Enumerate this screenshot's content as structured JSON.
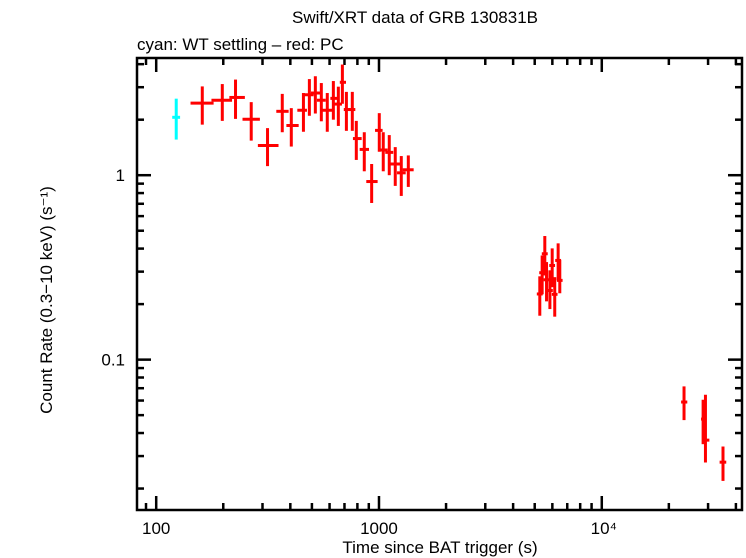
{
  "chart_data": {
    "type": "scatter",
    "title": "Swift/XRT data of GRB 130831B",
    "subtitle": "cyan: WT settling – red: PC",
    "xlabel": "Time since BAT trigger (s)",
    "ylabel": "Count Rate (0.3−10 keV) (s⁻¹)",
    "xscale": "log",
    "yscale": "log",
    "xlim": [
      82,
      42600
    ],
    "ylim": [
      0.0153,
      4.32
    ],
    "x_ticks": [
      {
        "value": 100,
        "label": "100"
      },
      {
        "value": 1000,
        "label": "1000"
      },
      {
        "value": 10000,
        "label": "10⁴"
      }
    ],
    "y_ticks": [
      {
        "value": 0.1,
        "label": "0.1"
      },
      {
        "value": 1,
        "label": "1"
      }
    ],
    "grid": false,
    "point_format": [
      "time",
      "time_low",
      "time_high",
      "rate",
      "rate_low",
      "rate_high"
    ],
    "series": [
      {
        "name": "WT settling",
        "color": "#00ffff",
        "points": [
          [
            123,
            118,
            128,
            2.06,
            1.56,
            2.6
          ]
        ]
      },
      {
        "name": "PC",
        "color": "#ff0000",
        "points": [
          [
            161,
            142.6,
            181,
            2.46,
            1.88,
            3.03
          ],
          [
            198,
            177,
            219,
            2.55,
            1.97,
            3.12
          ],
          [
            227,
            213,
            250,
            2.64,
            2.02,
            3.3
          ],
          [
            267,
            244,
            292,
            2.01,
            1.54,
            2.49
          ],
          [
            316,
            286,
            354,
            1.45,
            1.12,
            1.8
          ],
          [
            368,
            346,
            393,
            2.22,
            1.71,
            2.76
          ],
          [
            404,
            384,
            436,
            1.86,
            1.43,
            2.31
          ],
          [
            458,
            430,
            475,
            2.25,
            1.72,
            2.79
          ],
          [
            487,
            461,
            509,
            2.73,
            2.1,
            3.32
          ],
          [
            518,
            495,
            550,
            2.79,
            2.16,
            3.44
          ],
          [
            551,
            527,
            577,
            2.55,
            1.96,
            3.16
          ],
          [
            586,
            557,
            622,
            2.25,
            1.72,
            2.79
          ],
          [
            624,
            605,
            648,
            2.61,
            2.0,
            3.24
          ],
          [
            657,
            631,
            682,
            2.43,
            1.85,
            3.02
          ],
          [
            685,
            667,
            711,
            3.19,
            2.44,
            3.98
          ],
          [
            714,
            695,
            743,
            2.27,
            1.74,
            2.83
          ],
          [
            759,
            733,
            783,
            2.27,
            1.74,
            2.83
          ],
          [
            791,
            764,
            836,
            1.58,
            1.21,
            1.97
          ],
          [
            859,
            819,
            902,
            1.38,
            1.05,
            1.71
          ],
          [
            927,
            877,
            986,
            0.924,
            0.707,
            1.15
          ],
          [
            1003,
            960,
            1038,
            1.75,
            1.34,
            2.17
          ],
          [
            1045,
            1014,
            1094,
            1.37,
            1.05,
            1.71
          ],
          [
            1112,
            1067,
            1159,
            1.33,
            1.0,
            1.65
          ],
          [
            1183,
            1125,
            1247,
            1.15,
            0.875,
            1.42
          ],
          [
            1259,
            1205,
            1318,
            1.03,
            0.772,
            1.27
          ],
          [
            1354,
            1277,
            1431,
            1.07,
            0.864,
            1.28
          ],
          [
            5270,
            5110,
            5430,
            0.227,
            0.173,
            0.283
          ],
          [
            5400,
            5240,
            5560,
            0.296,
            0.226,
            0.367
          ],
          [
            5550,
            5380,
            5720,
            0.375,
            0.286,
            0.468
          ],
          [
            5650,
            5480,
            5820,
            0.271,
            0.207,
            0.338
          ],
          [
            5850,
            5670,
            6030,
            0.237,
            0.188,
            0.305
          ],
          [
            5990,
            5810,
            6170,
            0.324,
            0.247,
            0.401
          ],
          [
            6150,
            5970,
            6330,
            0.226,
            0.171,
            0.28
          ],
          [
            6370,
            6180,
            6560,
            0.345,
            0.269,
            0.427
          ],
          [
            6480,
            6290,
            6670,
            0.269,
            0.229,
            0.348
          ],
          [
            23400,
            22700,
            24200,
            0.0589,
            0.047,
            0.0716
          ],
          [
            28500,
            27900,
            29000,
            0.0476,
            0.0348,
            0.0606
          ],
          [
            29200,
            28300,
            30400,
            0.0366,
            0.0277,
            0.0645
          ],
          [
            35000,
            33800,
            36200,
            0.0278,
            0.022,
            0.0338
          ]
        ]
      }
    ]
  }
}
